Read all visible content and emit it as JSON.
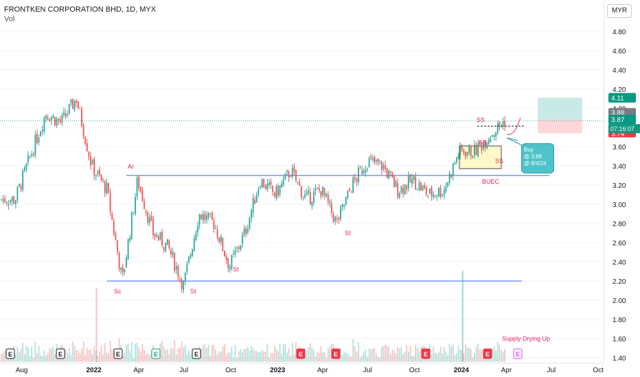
{
  "header": {
    "title": "FRONTKEN CORPORATION BHD, 1D, MYX",
    "volume_label": "Vol",
    "currency": "MYR"
  },
  "price_tags": {
    "target": "4.11",
    "last_close": "3.88",
    "current": "3.87",
    "countdown": "07:16:07",
    "stop": "3.74"
  },
  "callout": {
    "line1": "Buy",
    "line2": "@ 3.88",
    "line3": "@ 8/4/24"
  },
  "annotations": {
    "ar": "Ar",
    "sc": "Sc",
    "st_jul22": "St",
    "st_oct22": "St",
    "st_jun23": "St",
    "buec": "BUEC",
    "ss_top": "SS",
    "ss_mid": "SS",
    "ss_low": "SS",
    "supply": "Supply Drying Up"
  },
  "earnings_marker": "E",
  "colors": {
    "up": "#26a69a",
    "down": "#ef5350",
    "level_line": "#2962ff",
    "annotation": "#e91e63",
    "profit_zone": "#b2dfdb",
    "loss_zone": "#ffcdd2",
    "box_fill": "#fff9c4"
  },
  "chart_data": {
    "type": "candlestick",
    "symbol": "FRONTKEN CORPORATION BHD",
    "interval": "1D",
    "y_ticks": [
      1.4,
      1.6,
      1.8,
      2.0,
      2.2,
      2.4,
      2.6,
      2.8,
      3.0,
      3.2,
      3.4,
      3.6,
      3.8,
      4.0,
      4.2,
      4.4,
      4.6,
      4.8
    ],
    "x_ticks": [
      "Aug",
      "2022",
      "Apr",
      "Jul",
      "Oct",
      "2023",
      "Apr",
      "Jul",
      "Oct",
      "2024",
      "Apr",
      "Jul",
      "Oct"
    ],
    "ylim": [
      1.36,
      4.96
    ],
    "price_path": [
      {
        "t": "2021-08",
        "close": 3.05
      },
      {
        "t": "2021-09",
        "close": 3.5
      },
      {
        "t": "2021-10",
        "close": 3.95
      },
      {
        "t": "2021-11",
        "close": 3.85
      },
      {
        "t": "2021-12",
        "close": 4.1
      },
      {
        "t": "2022-01",
        "close": 3.4
      },
      {
        "t": "2022-02",
        "close": 3.15
      },
      {
        "t": "2022-03",
        "close": 2.2
      },
      {
        "t": "2022-04",
        "close": 3.25
      },
      {
        "t": "2022-05",
        "close": 2.7
      },
      {
        "t": "2022-06",
        "close": 2.55
      },
      {
        "t": "2022-07",
        "close": 2.15
      },
      {
        "t": "2022-08",
        "close": 2.9
      },
      {
        "t": "2022-09",
        "close": 2.8
      },
      {
        "t": "2022-10",
        "close": 2.35
      },
      {
        "t": "2022-11",
        "close": 2.7
      },
      {
        "t": "2022-12",
        "close": 3.25
      },
      {
        "t": "2023-01",
        "close": 3.1
      },
      {
        "t": "2023-02",
        "close": 3.35
      },
      {
        "t": "2023-03",
        "close": 3.05
      },
      {
        "t": "2023-04",
        "close": 3.15
      },
      {
        "t": "2023-05",
        "close": 2.8
      },
      {
        "t": "2023-06",
        "close": 3.2
      },
      {
        "t": "2023-07",
        "close": 3.45
      },
      {
        "t": "2023-08",
        "close": 3.4
      },
      {
        "t": "2023-09",
        "close": 3.15
      },
      {
        "t": "2023-10",
        "close": 3.25
      },
      {
        "t": "2023-11",
        "close": 3.1
      },
      {
        "t": "2023-12",
        "close": 3.15
      },
      {
        "t": "2024-01",
        "close": 3.55
      },
      {
        "t": "2024-02",
        "close": 3.55
      },
      {
        "t": "2024-03",
        "close": 3.72
      },
      {
        "t": "2024-04",
        "close": 3.87
      }
    ],
    "levels": [
      {
        "price": 3.3
      },
      {
        "price": 2.2
      }
    ],
    "trade": {
      "entry": 3.88,
      "target": 4.11,
      "stop": 3.74
    },
    "volume_spike": {
      "t": "2024-01"
    }
  }
}
